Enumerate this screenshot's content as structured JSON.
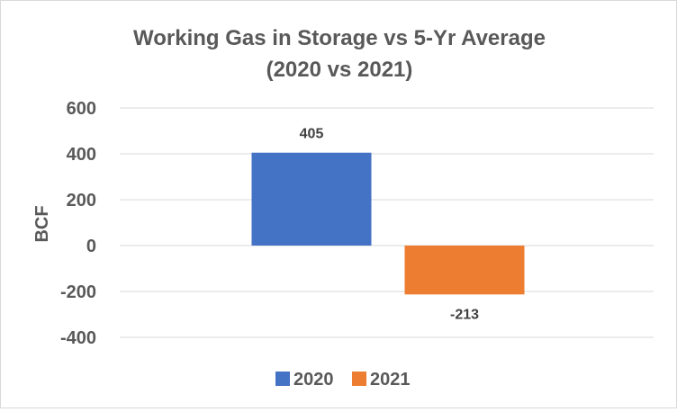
{
  "chart_data": {
    "type": "bar",
    "title": "Working Gas in Storage vs 5-Yr Average",
    "subtitle": "(2020 vs 2021)",
    "xlabel": "",
    "ylabel": "BCF",
    "ylim": [
      -400,
      600
    ],
    "yticks": [
      600,
      400,
      200,
      0,
      -200,
      -400
    ],
    "grid": true,
    "legend_position": "bottom",
    "series": [
      {
        "name": "2020",
        "values": [
          405
        ],
        "color": "#4472c4",
        "label": "405"
      },
      {
        "name": "2021",
        "values": [
          -213
        ],
        "color": "#ed7d31",
        "label": "-213"
      }
    ]
  }
}
